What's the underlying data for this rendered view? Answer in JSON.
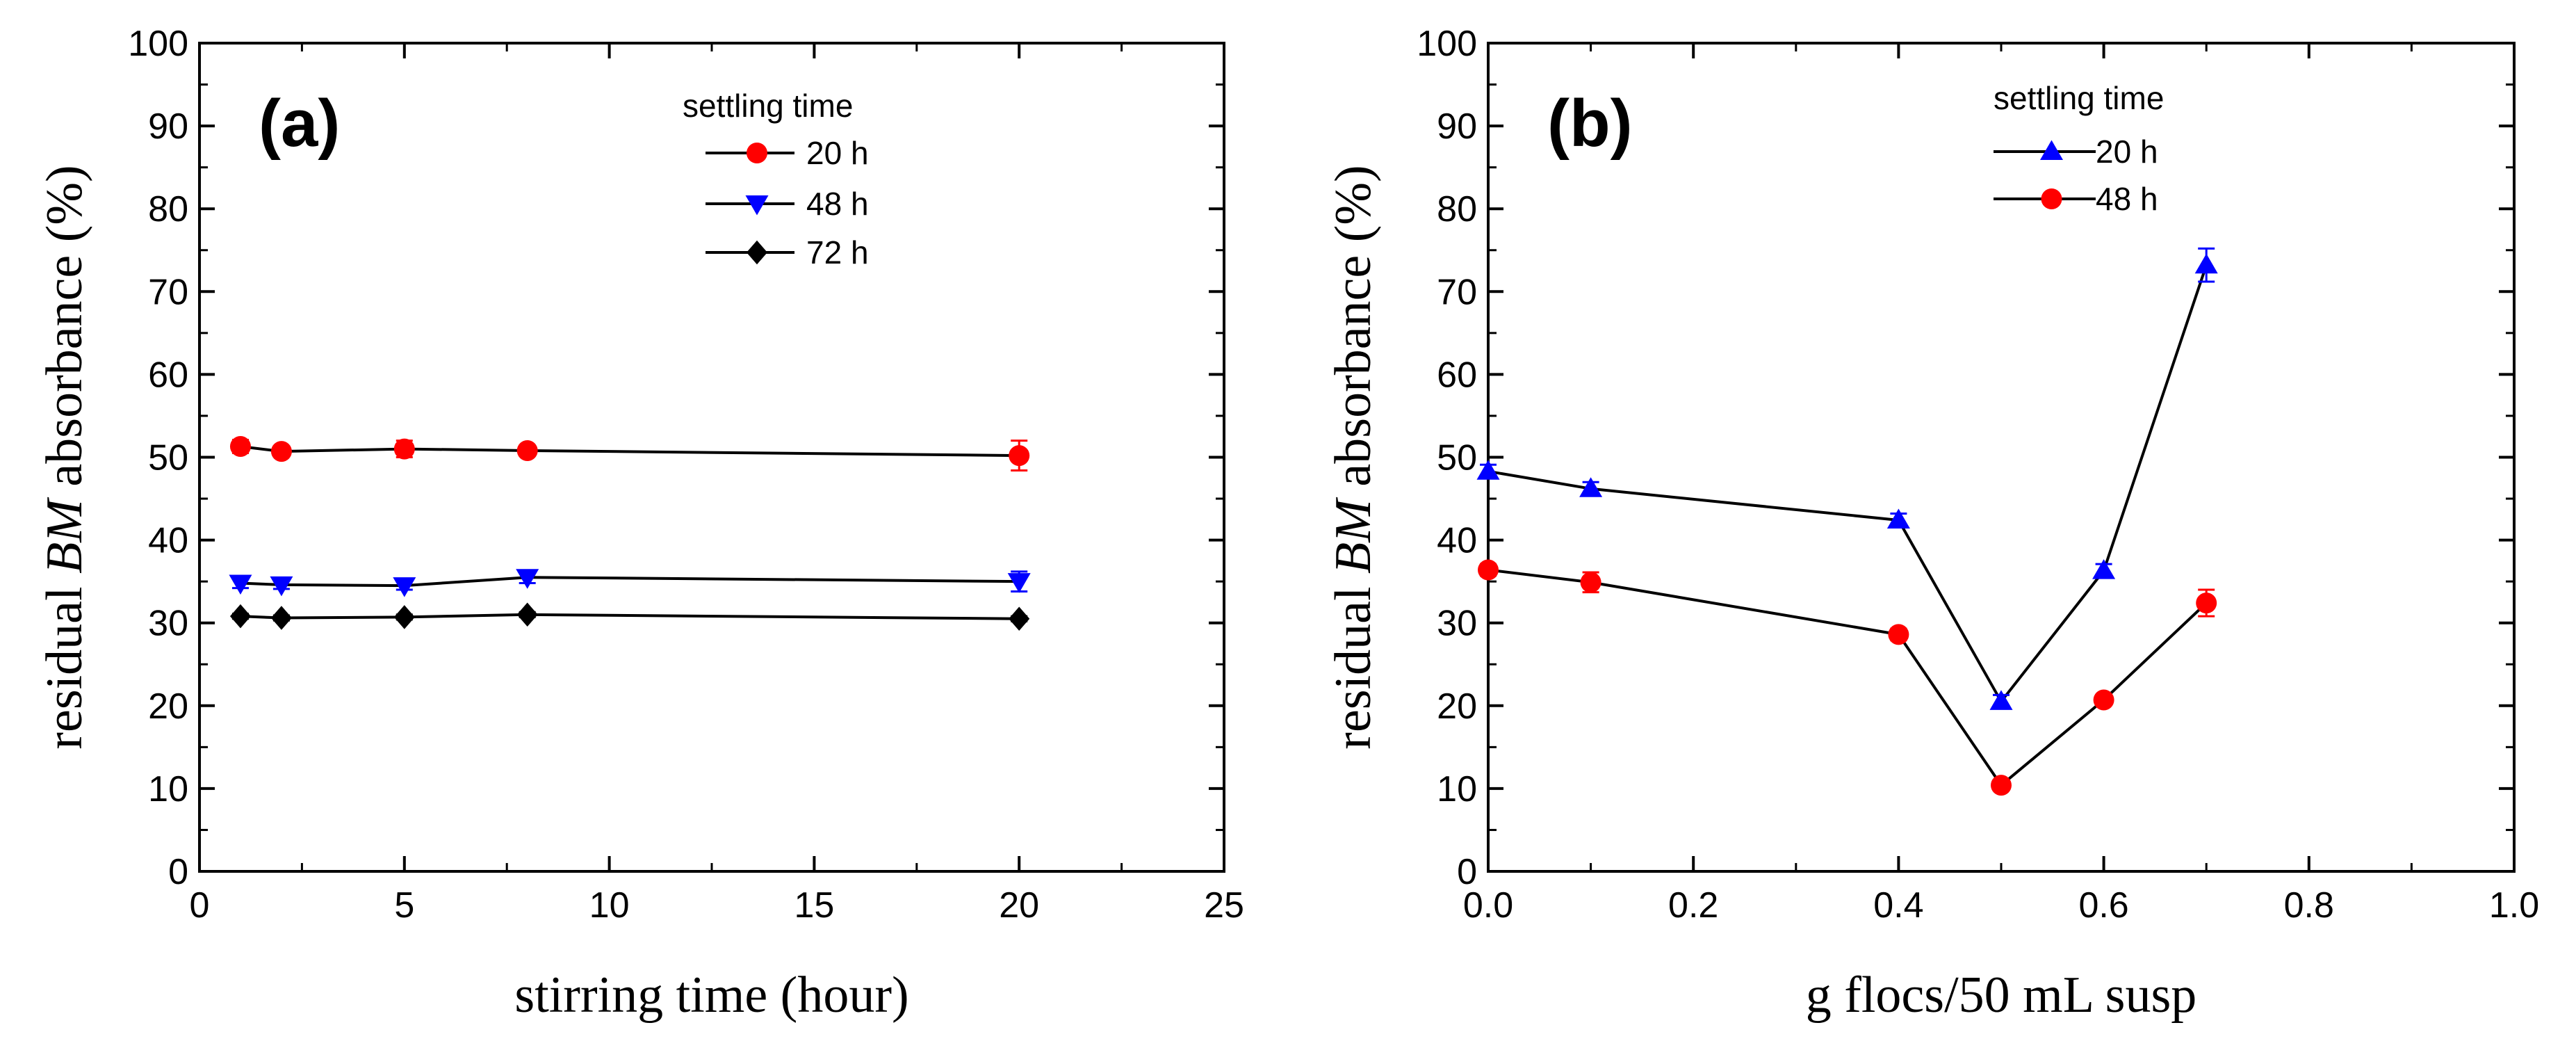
{
  "chart_data": [
    {
      "type": "line",
      "panel_label": "(a)",
      "xlabel": "stirring time (hour)",
      "ylabel_pre": "residual ",
      "ylabel_italic": "BM",
      "ylabel_post": " absorbance (%)",
      "xlim": [
        0,
        25
      ],
      "ylim": [
        0,
        100
      ],
      "xticks": [
        0,
        5,
        10,
        15,
        20,
        25
      ],
      "yticks": [
        0,
        10,
        20,
        30,
        40,
        50,
        60,
        70,
        80,
        90,
        100
      ],
      "legend_title": "settling time",
      "legend_position": "top-right",
      "series": [
        {
          "name": "20 h",
          "color": "#ff0000",
          "marker": "circle",
          "x": [
            1,
            2,
            5,
            8,
            20
          ],
          "values": [
            51.3,
            50.7,
            51.0,
            50.8,
            50.2
          ],
          "errors": [
            0.8,
            0.6,
            1.0,
            0.6,
            1.8
          ]
        },
        {
          "name": "48 h",
          "color": "#0000ff",
          "marker": "triangle-down",
          "x": [
            1,
            2,
            5,
            8,
            20
          ],
          "values": [
            34.8,
            34.6,
            34.5,
            35.5,
            35.0
          ],
          "errors": [
            0.6,
            0.5,
            0.5,
            0.7,
            1.2
          ]
        },
        {
          "name": "72 h",
          "color": "#000000",
          "marker": "diamond",
          "x": [
            1,
            2,
            5,
            8,
            20
          ],
          "values": [
            30.8,
            30.6,
            30.7,
            31.0,
            30.5
          ],
          "errors": [
            0.3,
            0.3,
            0.3,
            0.3,
            0.3
          ]
        }
      ]
    },
    {
      "type": "line",
      "panel_label": "(b)",
      "xlabel": "g flocs/50 mL susp",
      "ylabel_pre": "residual ",
      "ylabel_italic": "BM",
      "ylabel_post": " absorbance (%)",
      "xlim": [
        0,
        1.0
      ],
      "ylim": [
        0,
        100
      ],
      "xticks": [
        "0.0",
        "0.2",
        "0.4",
        "0.6",
        "0.8",
        "1.0"
      ],
      "yticks": [
        0,
        10,
        20,
        30,
        40,
        50,
        60,
        70,
        80,
        90,
        100
      ],
      "legend_title": "settling time",
      "legend_position": "top-center",
      "series": [
        {
          "name": "20 h",
          "color": "#0000ff",
          "marker": "triangle-up",
          "x": [
            0.0,
            0.1,
            0.4,
            0.5,
            0.6,
            0.7
          ],
          "values": [
            48.3,
            46.2,
            42.4,
            20.5,
            36.3,
            73.2
          ],
          "errors": [
            0.8,
            0.8,
            0.8,
            0.8,
            0.8,
            2.0
          ]
        },
        {
          "name": "48 h",
          "color": "#ff0000",
          "marker": "circle",
          "x": [
            0.0,
            0.1,
            0.4,
            0.5,
            0.6,
            0.7
          ],
          "values": [
            36.4,
            34.9,
            28.6,
            10.4,
            20.7,
            32.4
          ],
          "errors": [
            0.7,
            1.2,
            0.7,
            0.5,
            0.5,
            1.6
          ]
        }
      ]
    }
  ]
}
